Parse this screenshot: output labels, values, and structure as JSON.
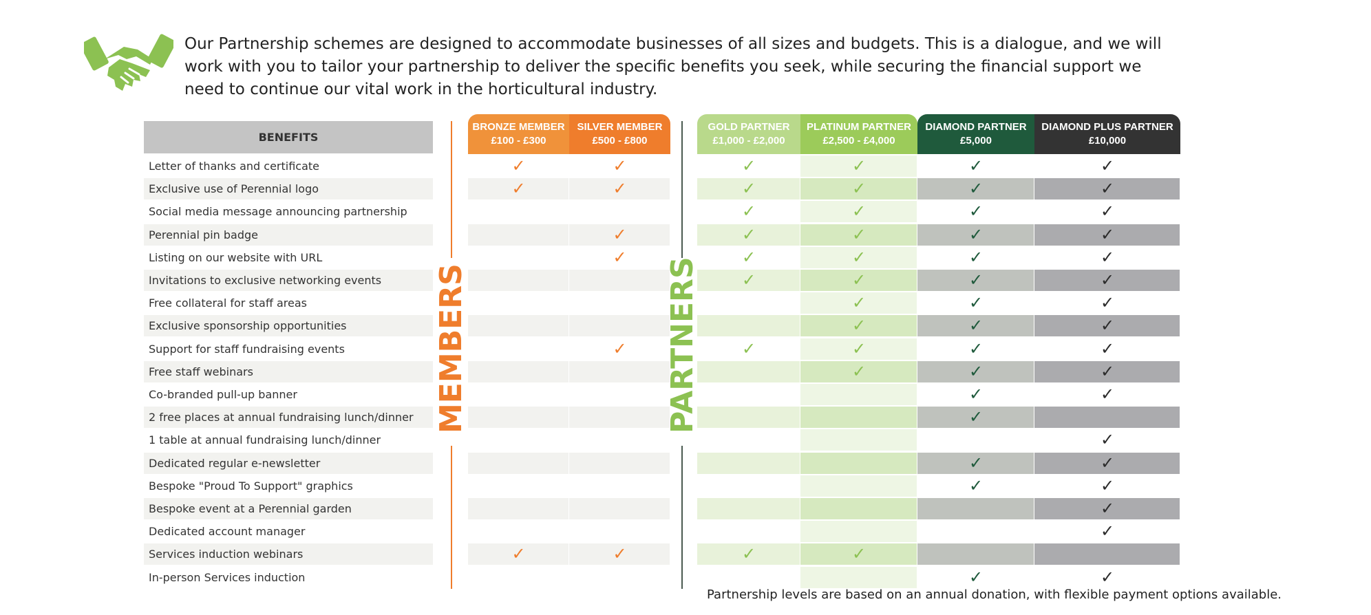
{
  "intro": {
    "icon": "handshake-icon",
    "text": "Our Partnership schemes are designed to accommodate businesses of all sizes and budgets. This is a dialogue, and we will work with you to tailor your partnership to deliver the specific benefits you seek, while securing the financial support we need to continue our vital work in the horticultural industry."
  },
  "benefits_header": "BENEFITS",
  "tiers": [
    {
      "name": "BRONZE MEMBER",
      "price": "£100 - £300",
      "header_color": "#f0923a",
      "check_color": "#ef7d2c"
    },
    {
      "name": "SILVER MEMBER",
      "price": "£500 - £800",
      "header_color": "#ef7d2c",
      "check_color": "#ef7d2c"
    },
    {
      "name": "GOLD PARTNER",
      "price": "£1,000 - £2,000",
      "header_color": "#b9d98b",
      "check_color": "#8cc152"
    },
    {
      "name": "PLATINUM PARTNER",
      "price": "£2,500 - £4,000",
      "header_color": "#9ccb5a",
      "check_color": "#8cc152"
    },
    {
      "name": "DIAMOND PARTNER",
      "price": "£5,000",
      "header_color": "#1f5a3c",
      "check_color": "#1f5a3c"
    },
    {
      "name": "DIAMOND PLUS PARTNER",
      "price": "£10,000",
      "header_color": "#333333",
      "check_color": "#2b2b2b"
    }
  ],
  "group_labels": {
    "members": "MEMBERS",
    "partners": "PARTNERS",
    "members_color": "#ef7d2c",
    "partners_color": "#8cc152"
  },
  "check_glyph": "✓",
  "benefits": [
    {
      "label": "Letter of thanks and certificate",
      "tiers": [
        true,
        true,
        true,
        true,
        true,
        true
      ]
    },
    {
      "label": "Exclusive use of Perennial logo",
      "tiers": [
        true,
        true,
        true,
        true,
        true,
        true
      ]
    },
    {
      "label": "Social media message announcing partnership",
      "tiers": [
        false,
        false,
        true,
        true,
        true,
        true
      ]
    },
    {
      "label": "Perennial pin badge",
      "tiers": [
        false,
        true,
        true,
        true,
        true,
        true
      ]
    },
    {
      "label": "Listing on our website with URL",
      "tiers": [
        false,
        true,
        true,
        true,
        true,
        true
      ]
    },
    {
      "label": "Invitations to exclusive networking events",
      "tiers": [
        false,
        false,
        true,
        true,
        true,
        true
      ]
    },
    {
      "label": "Free collateral for staff areas",
      "tiers": [
        false,
        false,
        false,
        true,
        true,
        true
      ]
    },
    {
      "label": "Exclusive sponsorship opportunities",
      "tiers": [
        false,
        false,
        false,
        true,
        true,
        true
      ]
    },
    {
      "label": "Support for staff fundraising events",
      "tiers": [
        false,
        true,
        true,
        true,
        true,
        true
      ]
    },
    {
      "label": "Free staff webinars",
      "tiers": [
        false,
        false,
        false,
        true,
        true,
        true
      ]
    },
    {
      "label": "Co-branded pull-up banner",
      "tiers": [
        false,
        false,
        false,
        false,
        true,
        true
      ]
    },
    {
      "label": "2 free places at annual fundraising lunch/dinner",
      "tiers": [
        false,
        false,
        false,
        false,
        true,
        false
      ]
    },
    {
      "label": "1 table at annual fundraising lunch/dinner",
      "tiers": [
        false,
        false,
        false,
        false,
        false,
        true
      ]
    },
    {
      "label": "Dedicated regular e-newsletter",
      "tiers": [
        false,
        false,
        false,
        false,
        true,
        true
      ]
    },
    {
      "label": "Bespoke \"Proud To Support\" graphics",
      "tiers": [
        false,
        false,
        false,
        false,
        true,
        true
      ]
    },
    {
      "label": "Bespoke event at a Perennial garden",
      "tiers": [
        false,
        false,
        false,
        false,
        false,
        true
      ]
    },
    {
      "label": "Dedicated account manager",
      "tiers": [
        false,
        false,
        false,
        false,
        false,
        true
      ]
    },
    {
      "label": "Services induction webinars",
      "tiers": [
        true,
        true,
        true,
        true,
        false,
        false
      ]
    },
    {
      "label": "In-person Services induction",
      "tiers": [
        false,
        false,
        false,
        false,
        true,
        true
      ]
    }
  ],
  "footnote": "Partnership levels are based on an annual donation, with flexible payment options available."
}
